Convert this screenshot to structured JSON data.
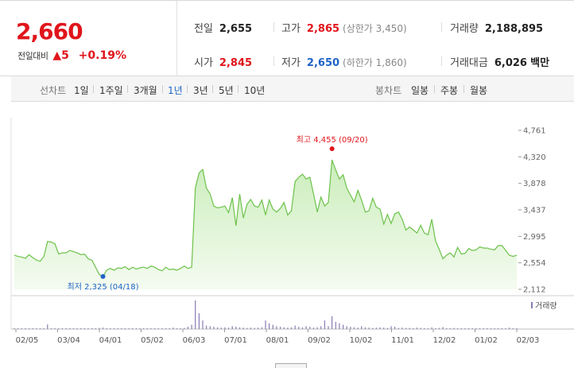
{
  "summary": {
    "price": "2,660",
    "change_label": "전일대비",
    "change_arrow": "▲",
    "change_value": "5",
    "change_pct": "+0.19%",
    "prev_close": {
      "label": "전일",
      "value": "2,655"
    },
    "open": {
      "label": "시가",
      "value": "2,845"
    },
    "high": {
      "label": "고가",
      "value": "2,865",
      "limit_label": "(상한가 3,450)"
    },
    "low": {
      "label": "저가",
      "value": "2,650",
      "limit_label": "(하한가 1,860)"
    },
    "volume": {
      "label": "거래량",
      "value": "2,188,895"
    },
    "amount": {
      "label": "거래대금",
      "value": "6,026",
      "unit": "백만"
    }
  },
  "toolbar": {
    "line_label": "선차트",
    "periods": [
      "1일",
      "1주일",
      "3개월",
      "1년",
      "3년",
      "5년",
      "10년"
    ],
    "active_period": "1년",
    "candle_label": "봉차트",
    "candle_periods": [
      "일봉",
      "주봉",
      "월봉"
    ]
  },
  "colors": {
    "up": "#e0151b",
    "down": "#1f63c6",
    "line": "#6cc24a",
    "volume": "#8a7bb3"
  },
  "chart_data": {
    "type": "area",
    "y_ticks": [
      "4,761",
      "4,320",
      "3,878",
      "3,437",
      "2,995",
      "2,554",
      "2,112"
    ],
    "ylim": [
      2112,
      4761
    ],
    "x_ticks": [
      "02/05",
      "03/04",
      "04/01",
      "05/02",
      "06/03",
      "07/01",
      "08/01",
      "09/02",
      "10/02",
      "11/01",
      "12/02",
      "01/02",
      "02/03"
    ],
    "high_annotation": "최고 4,455 (09/20)",
    "low_annotation": "최저 2,325 (04/18)",
    "high_value": 4455,
    "low_value": 2325,
    "volume_legend": "거래량",
    "series": [
      {
        "values": [
          2680,
          2660,
          2650,
          2630,
          2690,
          2640,
          2600,
          2580,
          2660,
          2910,
          2900,
          2870,
          2700,
          2720,
          2720,
          2760,
          2740,
          2720,
          2690,
          2700,
          2620,
          2600,
          2480,
          2360,
          2325,
          2430,
          2460,
          2430,
          2470,
          2460,
          2490,
          2440,
          2480,
          2450,
          2470,
          2480,
          2460,
          2500,
          2480,
          2440,
          2420,
          2480,
          2440,
          2450,
          2430,
          2460,
          2500,
          2460,
          2480,
          3800,
          4050,
          4110,
          3800,
          3700,
          3500,
          3470,
          3480,
          3500,
          3390,
          3640,
          3170,
          3700,
          3300,
          3530,
          3610,
          3500,
          3480,
          3600,
          3350,
          3600,
          3450,
          3400,
          3460,
          3560,
          3350,
          3420,
          3910,
          3980,
          4030,
          3950,
          3980,
          3700,
          3400,
          3650,
          3500,
          3560,
          4270,
          4100,
          3950,
          4020,
          3800,
          3680,
          3570,
          3760,
          3600,
          3400,
          3420,
          3630,
          3480,
          3450,
          3200,
          3360,
          3210,
          3370,
          3400,
          3280,
          3100,
          3150,
          3100,
          3050,
          3180,
          3050,
          3020,
          3280,
          2920,
          2780,
          2620,
          2680,
          2720,
          2650,
          2810,
          2700,
          2710,
          2790,
          2760,
          2770,
          2820,
          2800,
          2800,
          2780,
          2770,
          2840,
          2840,
          2760,
          2680,
          2660,
          2680
        ]
      }
    ],
    "volume": [
      0.02,
      0.01,
      0.02,
      0.01,
      0.01,
      0.03,
      0.01,
      0.02,
      0.02,
      0.16,
      0.02,
      0.03,
      0.01,
      0.02,
      0.03,
      0.01,
      0.02,
      0.02,
      0.01,
      0.02,
      0.02,
      0.03,
      0.02,
      0.04,
      0.05,
      0.02,
      0.01,
      0.02,
      0.01,
      0.02,
      0.02,
      0.01,
      0.02,
      0.01,
      0.02,
      0.01,
      0.02,
      0.03,
      0.02,
      0.02,
      0.01,
      0.02,
      0.02,
      0.05,
      0.03,
      0.02,
      0.04,
      0.08,
      0.15,
      1.0,
      0.55,
      0.3,
      0.12,
      0.1,
      0.08,
      0.06,
      0.05,
      0.06,
      0.05,
      0.1,
      0.08,
      0.06,
      0.05,
      0.04,
      0.05,
      0.04,
      0.05,
      0.06,
      0.3,
      0.2,
      0.15,
      0.1,
      0.08,
      0.06,
      0.05,
      0.06,
      0.12,
      0.08,
      0.06,
      0.1,
      0.08,
      0.05,
      0.06,
      0.1,
      0.3,
      0.1,
      0.45,
      0.25,
      0.2,
      0.15,
      0.1,
      0.08,
      0.06,
      0.05,
      0.1,
      0.06,
      0.05,
      0.04,
      0.05,
      0.06,
      0.05,
      0.04,
      0.1,
      0.08,
      0.04,
      0.05,
      0.04,
      0.04,
      0.03,
      0.05,
      0.04,
      0.03,
      0.02,
      0.06,
      0.03,
      0.04,
      0.07,
      0.03,
      0.02,
      0.04,
      0.02,
      0.03,
      0.02,
      0.03,
      0.02,
      0.02,
      0.03,
      0.02,
      0.03,
      0.02,
      0.02,
      0.03,
      0.02,
      0.02,
      0.05,
      0.02,
      0.02
    ]
  }
}
